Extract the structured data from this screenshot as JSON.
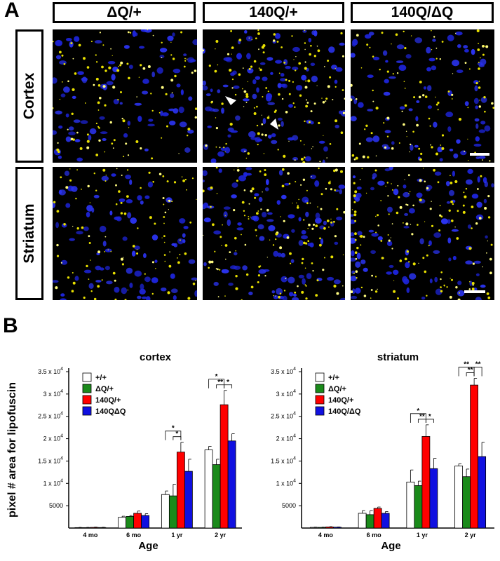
{
  "panel_a": {
    "letter": "A",
    "columns": [
      "ΔQ/+",
      "140Q/+",
      "140Q/ΔQ"
    ],
    "rows": [
      "Cortex",
      "Striatum"
    ]
  },
  "panel_b": {
    "letter": "B"
  },
  "chart_data": [
    {
      "type": "bar",
      "title": "cortex",
      "xlabel": "Age",
      "ylabel": "pixel # area for lipofuscin",
      "categories": [
        "4 mo",
        "6 mo",
        "1 yr",
        "2 yr"
      ],
      "ylim": [
        0,
        35000
      ],
      "y_ticks": [
        {
          "value": 5000,
          "base": "5000",
          "exp": ""
        },
        {
          "value": 10000,
          "base": "1 x 10",
          "exp": "4"
        },
        {
          "value": 15000,
          "base": "1.5 x 10",
          "exp": "4"
        },
        {
          "value": 20000,
          "base": "2 x 10",
          "exp": "4"
        },
        {
          "value": 25000,
          "base": "2.5 x 10",
          "exp": "4"
        },
        {
          "value": 30000,
          "base": "3 x 10",
          "exp": "4"
        },
        {
          "value": 35000,
          "base": "3.5 x 10",
          "exp": "4"
        }
      ],
      "series": [
        {
          "name": "+/+",
          "color": "#ffffff",
          "values": [
            100,
            2400,
            7500,
            17500
          ],
          "errors": [
            50,
            250,
            800,
            800
          ]
        },
        {
          "name": "ΔQ/+",
          "color": "#1a8a1a",
          "values": [
            100,
            2600,
            7200,
            14200
          ],
          "errors": [
            50,
            200,
            2600,
            1200
          ]
        },
        {
          "name": "140Q/+",
          "color": "#ff0000",
          "values": [
            150,
            3300,
            17000,
            27600
          ],
          "errors": [
            60,
            500,
            2200,
            3200
          ]
        },
        {
          "name": "140QΔQ",
          "color": "#1010e0",
          "values": [
            120,
            2800,
            12700,
            19500
          ],
          "errors": [
            50,
            400,
            2700,
            1600
          ]
        }
      ],
      "significance": [
        {
          "category": 2,
          "from": 0,
          "to": 2,
          "label": "*",
          "level": 0
        },
        {
          "category": 2,
          "from": 1,
          "to": 2,
          "label": "*",
          "level": 1
        },
        {
          "category": 3,
          "from": 0,
          "to": 2,
          "label": "*",
          "level": 0
        },
        {
          "category": 3,
          "from": 1,
          "to": 2,
          "label": "**",
          "level": 1
        },
        {
          "category": 3,
          "from": 2,
          "to": 3,
          "label": "*",
          "level": 1
        }
      ]
    },
    {
      "type": "bar",
      "title": "striatum",
      "xlabel": "Age",
      "ylabel": "",
      "categories": [
        "4 mo",
        "6 mo",
        "1 yr",
        "2 yr"
      ],
      "ylim": [
        0,
        35000
      ],
      "y_ticks": [
        {
          "value": 5000,
          "base": "5000",
          "exp": ""
        },
        {
          "value": 10000,
          "base": "1 x 10",
          "exp": "4"
        },
        {
          "value": 15000,
          "base": "1.5 x 10",
          "exp": "4"
        },
        {
          "value": 20000,
          "base": "2 x 10",
          "exp": "4"
        },
        {
          "value": 25000,
          "base": "2.5 x 10",
          "exp": "4"
        },
        {
          "value": 30000,
          "base": "3 x 10",
          "exp": "4"
        },
        {
          "value": 35000,
          "base": "3.5 x 10",
          "exp": "4"
        }
      ],
      "series": [
        {
          "name": "+/+",
          "color": "#ffffff",
          "values": [
            150,
            3300,
            10300,
            13900
          ],
          "errors": [
            50,
            600,
            2700,
            500
          ]
        },
        {
          "name": "ΔQ/+",
          "color": "#1a8a1a",
          "values": [
            150,
            3000,
            9500,
            11500
          ],
          "errors": [
            50,
            900,
            1000,
            1700
          ]
        },
        {
          "name": "140Q/+",
          "color": "#ff0000",
          "values": [
            250,
            4400,
            20500,
            32000
          ],
          "errors": [
            60,
            300,
            2600,
            1500
          ]
        },
        {
          "name": "140Q/ΔQ",
          "color": "#1010e0",
          "values": [
            200,
            3300,
            13300,
            16000
          ],
          "errors": [
            50,
            400,
            2300,
            3200
          ]
        }
      ],
      "significance": [
        {
          "category": 2,
          "from": 0,
          "to": 2,
          "label": "*",
          "level": 0
        },
        {
          "category": 2,
          "from": 1,
          "to": 2,
          "label": "**",
          "level": 1
        },
        {
          "category": 2,
          "from": 2,
          "to": 3,
          "label": "*",
          "level": 1
        },
        {
          "category": 3,
          "from": 0,
          "to": 2,
          "label": "**",
          "level": 0
        },
        {
          "category": 3,
          "from": 1,
          "to": 2,
          "label": "**",
          "level": 1
        },
        {
          "category": 3,
          "from": 2,
          "to": 3,
          "label": "**",
          "level": 0
        }
      ]
    }
  ]
}
